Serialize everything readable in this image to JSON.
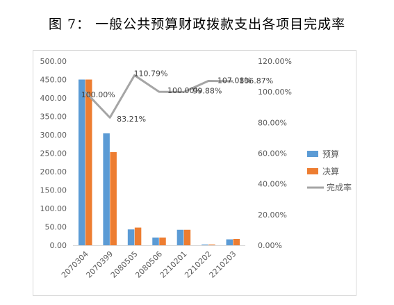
{
  "title": "图 7： 一般公共预算财政拨款支出各项目完成率",
  "chart_data": {
    "type": "bar",
    "categories": [
      "2070304",
      "2070399",
      "2080505",
      "2080506",
      "2210201",
      "2210202",
      "2210203"
    ],
    "series": [
      {
        "name": "预算",
        "type": "bar",
        "axis": "left",
        "color": "#5b9bd5",
        "values": [
          450,
          304,
          43,
          21,
          42,
          2,
          16
        ]
      },
      {
        "name": "决算",
        "type": "bar",
        "axis": "left",
        "color": "#ed7d31",
        "values": [
          450,
          253,
          48,
          21,
          42,
          2,
          17
        ]
      },
      {
        "name": "完成率",
        "type": "line",
        "axis": "right",
        "color": "#a5a5a5",
        "values": [
          100.0,
          83.21,
          110.79,
          100.0,
          99.88,
          107.08,
          106.87
        ]
      }
    ],
    "line_labels": [
      "100.00%",
      "83.21%",
      "110.79%",
      "100.00%",
      "99.88%",
      "107.08%",
      "106.87%"
    ],
    "y_left": {
      "min": 0,
      "max": 500,
      "step": 50,
      "ticks": [
        "0.00",
        "50.00",
        "100.00",
        "150.00",
        "200.00",
        "250.00",
        "300.00",
        "350.00",
        "400.00",
        "450.00",
        "500.00"
      ]
    },
    "y_right": {
      "min": 0,
      "max": 120,
      "step": 20,
      "ticks": [
        "0.00%",
        "20.00%",
        "40.00%",
        "60.00%",
        "80.00%",
        "100.00%",
        "120.00%"
      ]
    },
    "legend_position": "right",
    "grid": false
  }
}
